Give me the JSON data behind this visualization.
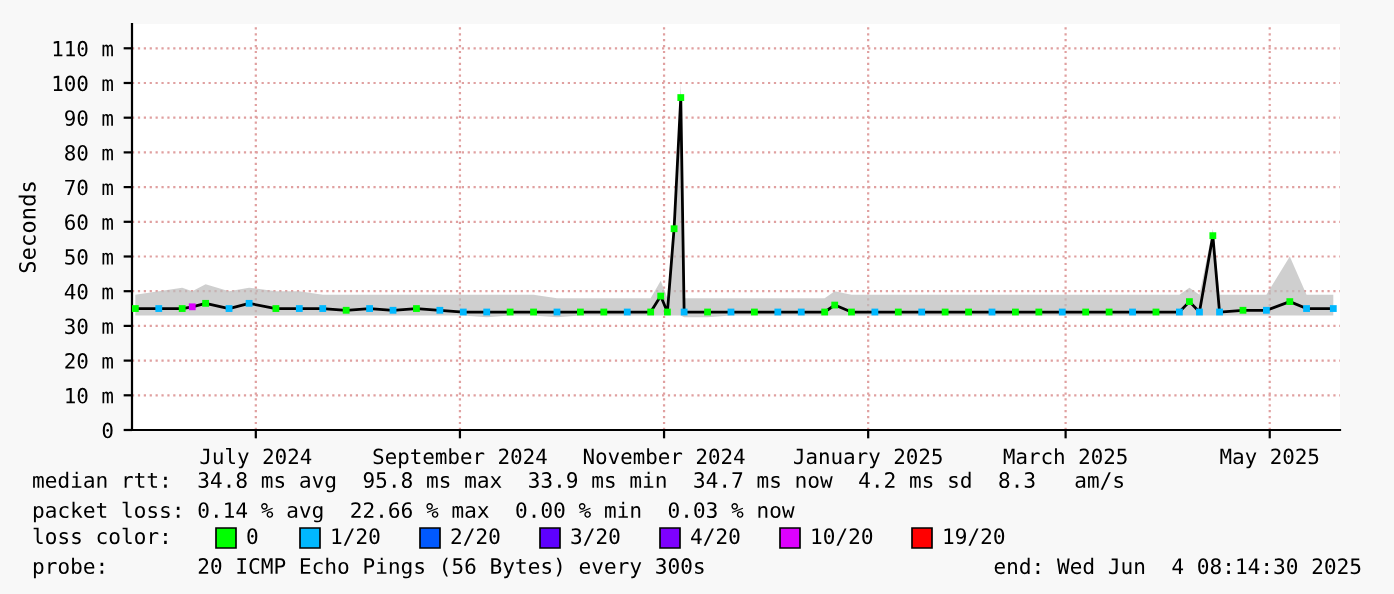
{
  "chart_data": {
    "type": "line",
    "ylabel": "Seconds",
    "xlim": [
      "2024-06-09",
      "2025-06-05"
    ],
    "xticks": [
      {
        "value": "2024-07-16",
        "label": "July 2024"
      },
      {
        "value": "2024-09-15",
        "label": "September 2024"
      },
      {
        "value": "2024-11-15",
        "label": "November 2024"
      },
      {
        "value": "2025-01-15",
        "label": "January 2025"
      },
      {
        "value": "2025-03-15",
        "label": "March 2025"
      },
      {
        "value": "2025-05-15",
        "label": "May 2025"
      }
    ],
    "ylim": [
      0,
      117
    ],
    "yticks": [
      0,
      {
        "value": 10,
        "label": "10 m"
      },
      {
        "value": 20,
        "label": "20 m"
      },
      {
        "value": 30,
        "label": "30 m"
      },
      {
        "value": 40,
        "label": "40 m"
      },
      {
        "value": 50,
        "label": "50 m"
      },
      {
        "value": 60,
        "label": "60 m"
      },
      {
        "value": 70,
        "label": "70 m"
      },
      {
        "value": 80,
        "label": "80 m"
      },
      {
        "value": 90,
        "label": "90 m"
      },
      {
        "value": 100,
        "label": "100 m"
      },
      {
        "value": 110,
        "label": "110 m"
      }
    ],
    "grid": true,
    "legend": "bottom",
    "legend_title": "loss color:",
    "series": [
      {
        "color": "#000000",
        "x": [
          "2024-06-10",
          "2024-06-17",
          "2024-06-24",
          "2024-06-27",
          "2024-07-01",
          "2024-07-08",
          "2024-07-14",
          "2024-07-22",
          "2024-07-29",
          "2024-08-05",
          "2024-08-12",
          "2024-08-19",
          "2024-08-26",
          "2024-09-02",
          "2024-09-09",
          "2024-09-16",
          "2024-09-23",
          "2024-09-30",
          "2024-10-07",
          "2024-10-14",
          "2024-10-21",
          "2024-10-28",
          "2024-11-04",
          "2024-11-11",
          "2024-11-14",
          "2024-11-16",
          "2024-11-18",
          "2024-11-20",
          "2024-11-21",
          "2024-11-28",
          "2024-12-05",
          "2024-12-12",
          "2024-12-19",
          "2024-12-26",
          "2025-01-02",
          "2025-01-05",
          "2025-01-10",
          "2025-01-17",
          "2025-01-24",
          "2025-01-31",
          "2025-02-07",
          "2025-02-14",
          "2025-02-21",
          "2025-02-28",
          "2025-03-07",
          "2025-03-14",
          "2025-03-21",
          "2025-03-28",
          "2025-04-04",
          "2025-04-11",
          "2025-04-18",
          "2025-04-21",
          "2025-04-24",
          "2025-04-28",
          "2025-04-30",
          "2025-05-07",
          "2025-05-14",
          "2025-05-21",
          "2025-05-26",
          "2025-06-03"
        ],
        "values": [
          35,
          35,
          35,
          35.5,
          36.5,
          35,
          36.5,
          35,
          35,
          35,
          34.5,
          35,
          34.5,
          35,
          34.5,
          34,
          34,
          34,
          34,
          34,
          34,
          34,
          34,
          34,
          38.6,
          34,
          58,
          95.8,
          34,
          34,
          34,
          34,
          34,
          34,
          34,
          36,
          34,
          34,
          34,
          34,
          34,
          34,
          34,
          34,
          34,
          34,
          34,
          34,
          34,
          34,
          34,
          37,
          34,
          56,
          34,
          34.5,
          34.5,
          37,
          35,
          35
        ],
        "lower": [
          33,
          33,
          33,
          33,
          33,
          33,
          33,
          33,
          33,
          33,
          33,
          33,
          33,
          33,
          33,
          33,
          32.5,
          33,
          33,
          32.5,
          33,
          33,
          33,
          33,
          33,
          33,
          33,
          33,
          32.5,
          32.5,
          33,
          33,
          33,
          33,
          33,
          33,
          33,
          33,
          33,
          33,
          33,
          33,
          33,
          33,
          33,
          33,
          33,
          33,
          33,
          33,
          33,
          33,
          33,
          33,
          33,
          33,
          33,
          33,
          33,
          33
        ],
        "upper": [
          39,
          40,
          41,
          40,
          42,
          40,
          41,
          40,
          40,
          39,
          39,
          39,
          39,
          39,
          39,
          39,
          39,
          39,
          39,
          38,
          38,
          38,
          38,
          38,
          43,
          38,
          62,
          100,
          38,
          38,
          38,
          38,
          38,
          38,
          38,
          40,
          39,
          39,
          39,
          39,
          39,
          39,
          39,
          39,
          39,
          39,
          39,
          39,
          39,
          39,
          39,
          41,
          39,
          58,
          39,
          39,
          39,
          50,
          39,
          39
        ]
      },
      {
        "type": "scatter",
        "name": "0",
        "color": "#00ff00",
        "x": [
          "2024-06-10",
          "2024-06-24",
          "2024-07-01",
          "2024-07-22",
          "2024-08-12",
          "2024-09-02",
          "2024-09-30",
          "2024-10-07",
          "2024-10-21",
          "2024-10-28",
          "2024-11-11",
          "2024-11-14",
          "2024-11-16",
          "2024-11-18",
          "2024-11-20",
          "2024-11-28",
          "2024-12-12",
          "2025-01-02",
          "2025-01-05",
          "2025-01-10",
          "2025-01-24",
          "2025-02-07",
          "2025-02-14",
          "2025-02-28",
          "2025-03-07",
          "2025-03-21",
          "2025-03-28",
          "2025-04-11",
          "2025-04-21",
          "2025-04-28",
          "2025-05-07",
          "2025-05-21"
        ],
        "values": [
          35,
          35,
          36.5,
          35,
          34.5,
          35,
          34,
          34,
          34,
          34,
          34,
          38.6,
          34,
          58,
          95.8,
          34,
          34,
          34,
          36,
          34,
          34,
          34,
          34,
          34,
          34,
          34,
          34,
          34,
          37,
          56,
          34.5,
          37
        ]
      },
      {
        "type": "scatter",
        "name": "1/20",
        "color": "#00b8ff",
        "x": [
          "2024-06-17",
          "2024-07-08",
          "2024-07-14",
          "2024-07-29",
          "2024-08-05",
          "2024-08-19",
          "2024-08-26",
          "2024-09-09",
          "2024-09-16",
          "2024-09-23",
          "2024-10-14",
          "2024-11-04",
          "2024-11-21",
          "2024-12-05",
          "2024-12-19",
          "2024-12-26",
          "2025-01-17",
          "2025-01-31",
          "2025-02-21",
          "2025-03-14",
          "2025-04-04",
          "2025-04-18",
          "2025-04-24",
          "2025-04-30",
          "2025-05-14",
          "2025-05-26",
          "2025-06-03"
        ],
        "values": [
          35,
          35,
          36.5,
          35,
          35,
          35,
          34.5,
          34.5,
          34,
          34,
          34,
          34,
          34,
          34,
          34,
          34,
          34,
          34,
          34,
          34,
          34,
          34,
          34,
          34,
          34.5,
          35,
          35
        ]
      },
      {
        "type": "scatter",
        "name": "2/20",
        "color": "#0059ff"
      },
      {
        "type": "scatter",
        "name": "3/20",
        "color": "#5e00ff"
      },
      {
        "type": "scatter",
        "name": "4/20",
        "color": "#7e00ff"
      },
      {
        "type": "scatter",
        "name": "10/20",
        "color": "#dd00ff",
        "x": [
          "2024-06-27"
        ],
        "values": [
          35.5
        ]
      },
      {
        "type": "scatter",
        "name": "19/20",
        "color": "#ff0000"
      }
    ],
    "annotations": [
      "median rtt:  34.8 ms avg  95.8 ms max  33.9 ms min  34.7 ms now  4.2 ms sd  8.3   am/s",
      "packet loss: 0.14 % avg  22.66 % max  0.00 % min  0.03 % now",
      "probe:       20 ICMP Echo Pings (56 Bytes) every 300s",
      "end: Wed Jun  4 08:14:30 2025"
    ]
  }
}
